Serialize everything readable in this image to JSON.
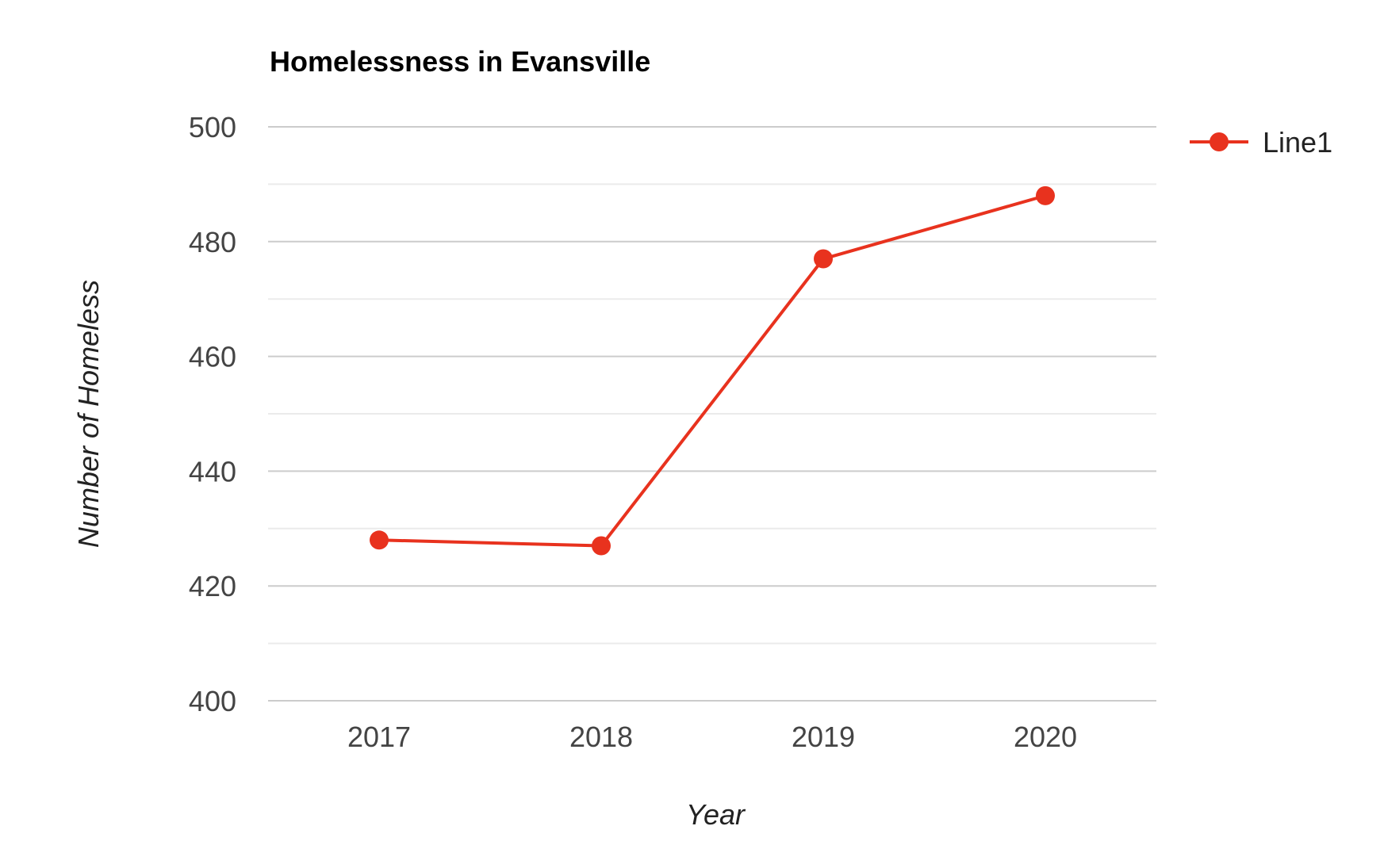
{
  "chart_data": {
    "type": "line",
    "title": "Homelessness in Evansville",
    "xlabel": "Year",
    "ylabel": "Number of Homeless",
    "categories": [
      "2017",
      "2018",
      "2019",
      "2020"
    ],
    "series": [
      {
        "name": "Line1",
        "values": [
          428,
          427,
          477,
          488
        ],
        "color": "#e8321e"
      }
    ],
    "ylim": [
      400,
      500
    ],
    "y_ticks": [
      400,
      420,
      440,
      460,
      480,
      500
    ],
    "y_minor_ticks": [
      410,
      430,
      450,
      470,
      490
    ],
    "grid": true,
    "legend_position": "right",
    "colors": {
      "major_grid": "#cccccc",
      "minor_grid": "#ebebeb"
    }
  }
}
